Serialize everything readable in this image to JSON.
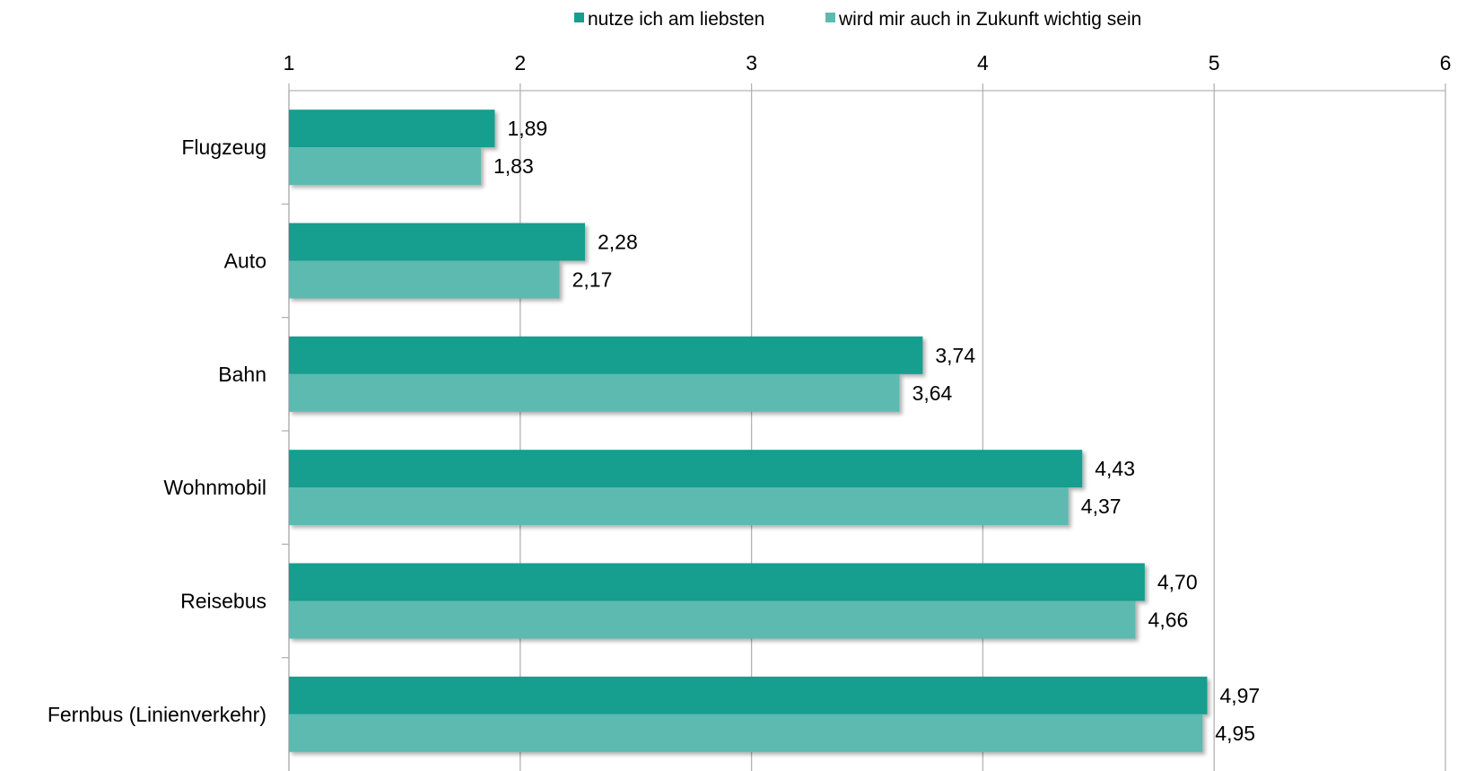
{
  "chart_data": {
    "type": "bar",
    "orientation": "horizontal",
    "categories": [
      "Flugzeug",
      "Auto",
      "Bahn",
      "Wohnmobil",
      "Reisebus",
      "Fernbus (Linienverkehr)"
    ],
    "series": [
      {
        "name": "nutze ich am liebsten",
        "color": "#169e8f",
        "values": [
          1.89,
          2.28,
          3.74,
          4.43,
          4.7,
          4.97
        ],
        "labels": [
          "1,89",
          "2,28",
          "3,74",
          "4,43",
          "4,70",
          "4,97"
        ]
      },
      {
        "name": "wird mir auch in Zukunft wichtig sein",
        "color": "#5dbab0",
        "values": [
          1.83,
          2.17,
          3.64,
          4.37,
          4.66,
          4.95
        ],
        "labels": [
          "1,83",
          "2,17",
          "3,64",
          "4,37",
          "4,66",
          "4,95"
        ]
      }
    ],
    "xlim": [
      1,
      6
    ],
    "xticks": [
      "1",
      "2",
      "3",
      "4",
      "5",
      "6"
    ],
    "x_axis_position": "top",
    "grid": true,
    "legend_position": "top",
    "title": "",
    "xlabel": "",
    "ylabel": ""
  }
}
